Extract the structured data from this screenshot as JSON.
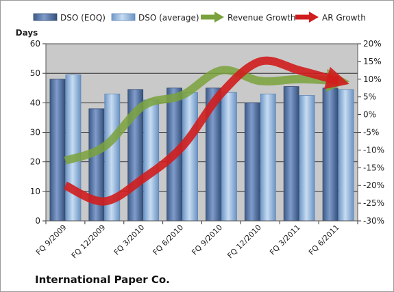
{
  "chart_data": {
    "type": "bar",
    "title": "",
    "caption": "International Paper Co.",
    "ylabel": "Days",
    "y2label": "",
    "categories": [
      "FQ 9/2009",
      "FQ 12/2009",
      "FQ 3/2010",
      "FQ 6/2010",
      "FQ 9/2010",
      "FQ 12/2010",
      "FQ 3/2011",
      "FQ 6/2011"
    ],
    "ylim": [
      0,
      60
    ],
    "yticks": [
      0,
      10,
      20,
      30,
      40,
      50,
      60
    ],
    "y2lim": [
      -30,
      20
    ],
    "y2ticks": [
      "-30%",
      "-25%",
      "-20%",
      "-15%",
      "-10%",
      "-5%",
      "0%",
      "5%",
      "10%",
      "15%",
      "20%"
    ],
    "y2tick_values": [
      -30,
      -25,
      -20,
      -15,
      -10,
      -5,
      0,
      5,
      10,
      15,
      20
    ],
    "grid": true,
    "legend": "top",
    "series": [
      {
        "name": "DSO (EOQ)",
        "type": "bar",
        "axis": "left",
        "color": "#4e6fa1",
        "values": [
          48,
          38,
          44.5,
          45,
          45,
          40,
          45.5,
          45
        ]
      },
      {
        "name": "DSO (average)",
        "type": "bar",
        "axis": "left",
        "color": "#8fb4dd",
        "values": [
          49.5,
          43,
          41,
          43.5,
          43.5,
          43,
          42.5,
          44.5
        ]
      },
      {
        "name": "Revenue Growth",
        "type": "line",
        "axis": "right",
        "color": "#7aa23c",
        "values": [
          -13,
          -9,
          2.5,
          5.5,
          12.5,
          9.5,
          10,
          9.5
        ]
      },
      {
        "name": "AR Growth",
        "type": "line",
        "axis": "right",
        "color": "#d01d1d",
        "values": [
          -20,
          -24.5,
          -18,
          -9,
          6,
          15,
          12.5,
          9.5
        ]
      }
    ]
  }
}
